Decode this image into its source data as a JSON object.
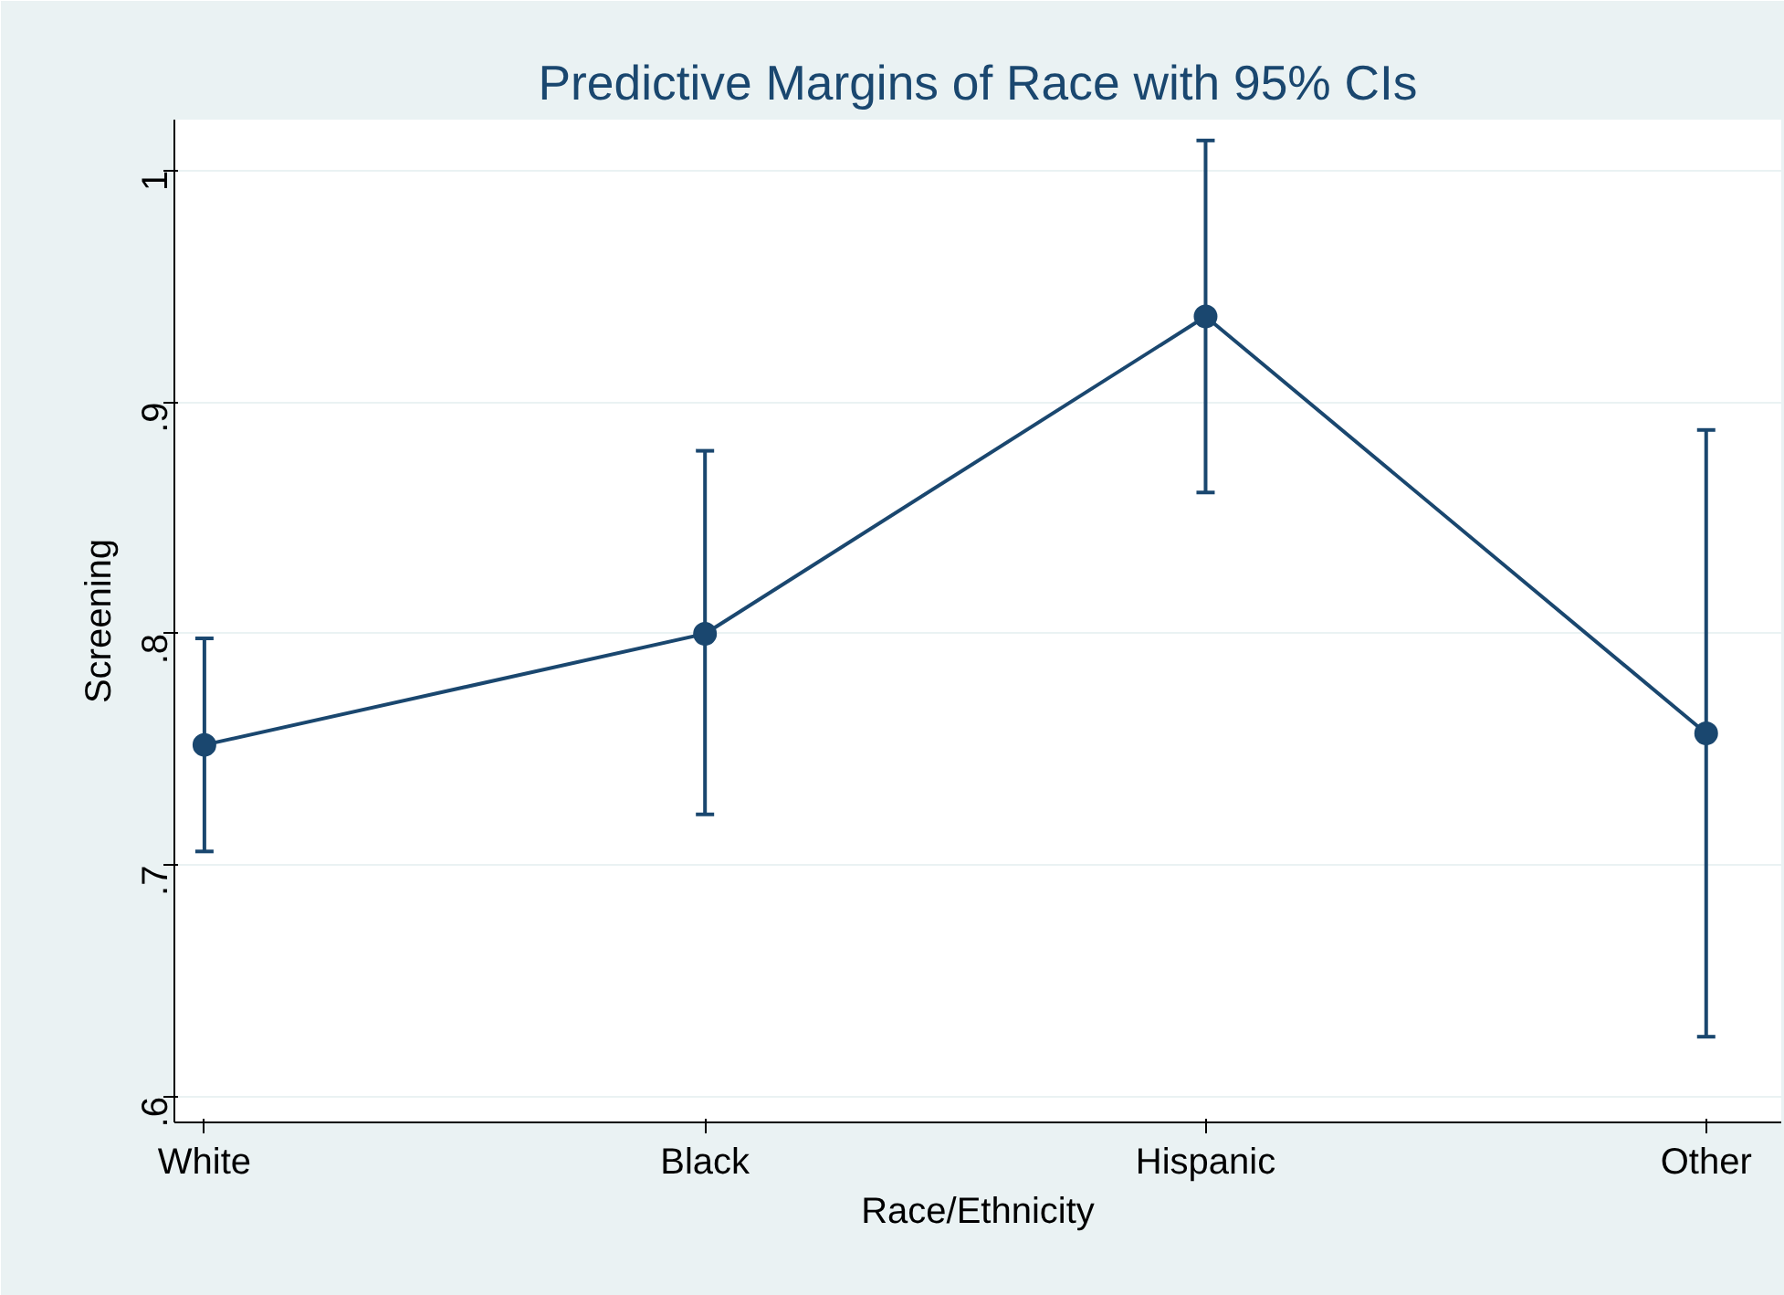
{
  "chart_data": {
    "type": "line",
    "title": "Predictive Margins of Race with 95% CIs",
    "xlabel": "Race/Ethnicity",
    "ylabel": "Screening",
    "categories": [
      "White",
      "Black",
      "Hispanic",
      "Other"
    ],
    "series": [
      {
        "color": "#1a476f",
        "values": [
          0.752,
          0.8,
          0.937,
          0.757
        ],
        "errors": [
          [
            0.706,
            0.798
          ],
          [
            0.722,
            0.879
          ],
          [
            0.861,
            1.013
          ],
          [
            0.626,
            0.888
          ]
        ]
      }
    ],
    "ylim": [
      0.589,
      1.022
    ],
    "yticks": [
      {
        "value": 0.6,
        "label": ".6"
      },
      {
        "value": 0.7,
        "label": ".7"
      },
      {
        "value": 0.8,
        "label": ".8"
      },
      {
        "value": 0.9,
        "label": ".9"
      },
      {
        "value": 1,
        "label": "1"
      }
    ],
    "grid": "y",
    "marker": "circle",
    "line_style": "solid"
  }
}
